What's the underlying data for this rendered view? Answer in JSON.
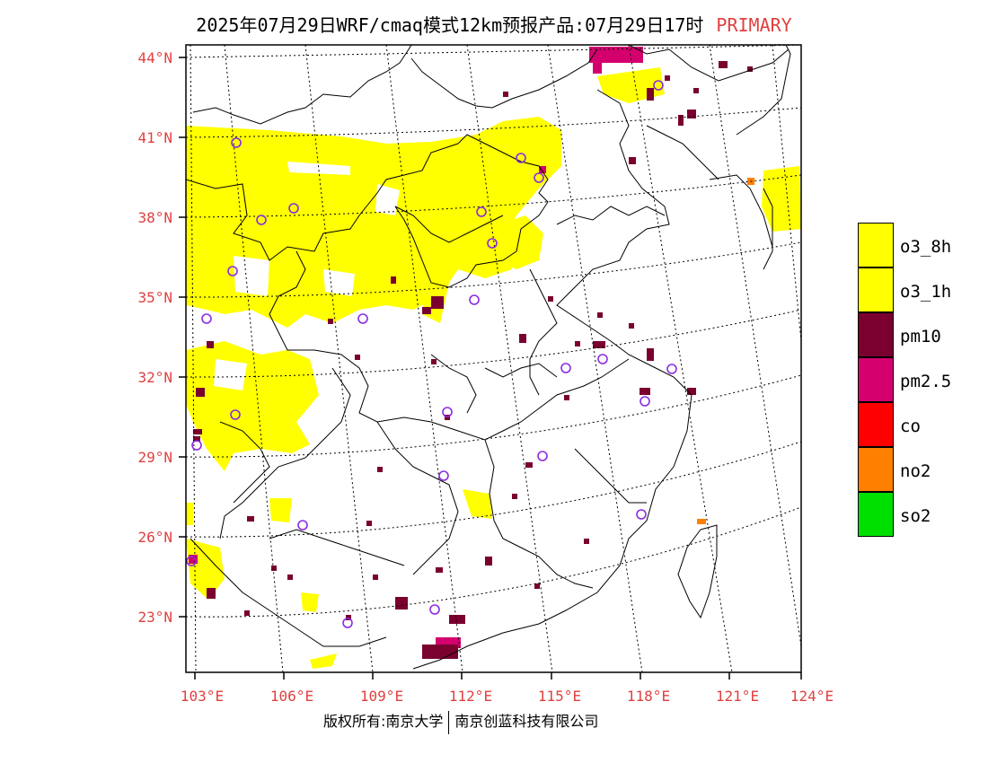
{
  "header": {
    "title": "2025年07月29日WRF/cmaq模式12km预报产品:07月29日17时",
    "tag": "PRIMARY"
  },
  "map": {
    "lat_labels": [
      "44°N",
      "41°N",
      "38°N",
      "35°N",
      "32°N",
      "29°N",
      "26°N",
      "23°N"
    ],
    "lon_labels": [
      "103°E",
      "106°E",
      "109°E",
      "112°E",
      "115°E",
      "118°E",
      "121°E",
      "124°E"
    ],
    "colors": {
      "o3_8h": "#ffff00",
      "o3_1h": "#ffff00",
      "pm10": "#7a0030",
      "pm25": "#d4006e",
      "no2": "#ff8000",
      "station": "#8a2be2"
    }
  },
  "legend": {
    "items": [
      {
        "label": "o3_8h",
        "color": "#ffff00"
      },
      {
        "label": "o3_1h",
        "color": "#ffff00"
      },
      {
        "label": "pm10",
        "color": "#7a0030"
      },
      {
        "label": "pm2.5",
        "color": "#d4006e"
      },
      {
        "label": "co",
        "color": "#ff0000"
      },
      {
        "label": "no2",
        "color": "#ff8000"
      },
      {
        "label": "so2",
        "color": "#00e000"
      }
    ]
  },
  "footer": {
    "left": "版权所有:南京大学",
    "right": "南京创蓝科技有限公司"
  }
}
